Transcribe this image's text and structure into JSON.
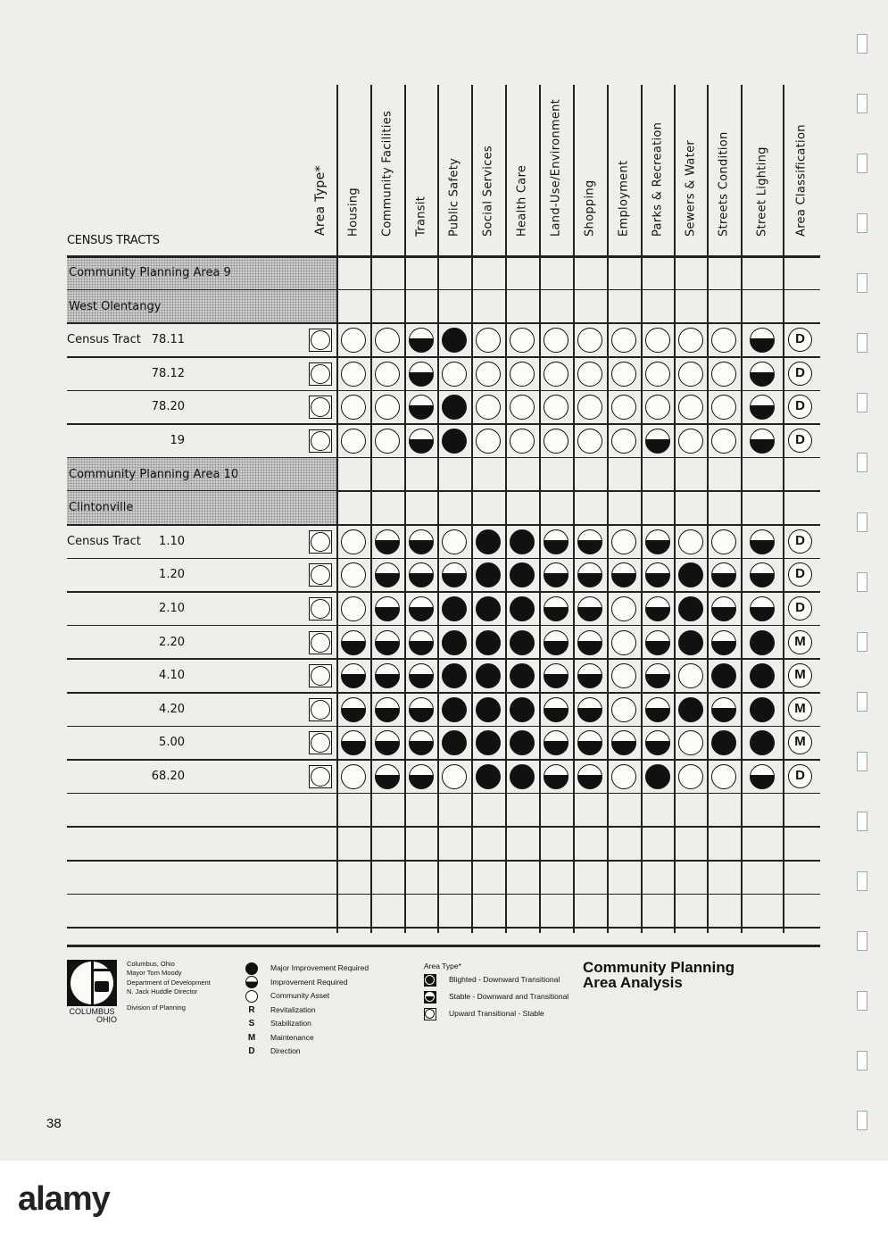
{
  "header": {
    "census_tracts_label": "CENSUS TRACTS",
    "area_type_label": "Area Type*",
    "columns": [
      "Housing",
      "Community Facilities",
      "Transit",
      "Public Safety",
      "Social Services",
      "Health Care",
      "Land-Use/Environment",
      "Shopping",
      "Employment",
      "Parks & Recreation",
      "Sewers & Water",
      "Streets Condition",
      "Street Lighting"
    ],
    "classification_label": "Area Classification"
  },
  "rows": [
    {
      "kind": "section",
      "label": "Community Planning Area 9"
    },
    {
      "kind": "section",
      "label": "West Olentangy"
    },
    {
      "kind": "tract",
      "prefix": "Census Tract",
      "tract": "78.11",
      "area_type": "upward-transitional-stable",
      "ratings": [
        "asset",
        "asset",
        "improvement",
        "major",
        "asset",
        "asset",
        "asset",
        "asset",
        "asset",
        "asset",
        "asset",
        "asset",
        "improvement"
      ],
      "classification": "D"
    },
    {
      "kind": "tract",
      "prefix": "",
      "tract": "78.12",
      "area_type": "upward-transitional-stable",
      "ratings": [
        "asset",
        "asset",
        "improvement",
        "asset",
        "asset",
        "asset",
        "asset",
        "asset",
        "asset",
        "asset",
        "asset",
        "asset",
        "improvement"
      ],
      "classification": "D"
    },
    {
      "kind": "tract",
      "prefix": "",
      "tract": "78.20",
      "area_type": "upward-transitional-stable",
      "ratings": [
        "asset",
        "asset",
        "improvement",
        "major",
        "asset",
        "asset",
        "asset",
        "asset",
        "asset",
        "asset",
        "asset",
        "asset",
        "improvement"
      ],
      "classification": "D"
    },
    {
      "kind": "tract",
      "prefix": "",
      "tract": "19",
      "area_type": "upward-transitional-stable",
      "ratings": [
        "asset",
        "asset",
        "improvement",
        "major",
        "asset",
        "asset",
        "asset",
        "asset",
        "asset",
        "improvement",
        "asset",
        "asset",
        "improvement"
      ],
      "classification": "D"
    },
    {
      "kind": "section",
      "label": "Community Planning Area 10"
    },
    {
      "kind": "section",
      "label": "Clintonville"
    },
    {
      "kind": "tract",
      "prefix": "Census Tract",
      "tract": "1.10",
      "area_type": "upward-transitional-stable",
      "ratings": [
        "asset",
        "improvement",
        "improvement",
        "asset",
        "major",
        "major",
        "improvement",
        "improvement",
        "asset",
        "improvement",
        "asset",
        "asset",
        "improvement"
      ],
      "classification": "D"
    },
    {
      "kind": "tract",
      "prefix": "",
      "tract": "1.20",
      "area_type": "upward-transitional-stable",
      "ratings": [
        "asset",
        "improvement",
        "improvement",
        "improvement",
        "major",
        "major",
        "improvement",
        "improvement",
        "improvement",
        "improvement",
        "major",
        "improvement",
        "improvement"
      ],
      "classification": "D"
    },
    {
      "kind": "tract",
      "prefix": "",
      "tract": "2.10",
      "area_type": "upward-transitional-stable",
      "ratings": [
        "asset",
        "improvement",
        "improvement",
        "major",
        "major",
        "major",
        "improvement",
        "improvement",
        "asset",
        "improvement",
        "major",
        "improvement",
        "improvement"
      ],
      "classification": "D"
    },
    {
      "kind": "tract",
      "prefix": "",
      "tract": "2.20",
      "area_type": "upward-transitional-stable",
      "ratings": [
        "improvement",
        "improvement",
        "improvement",
        "major",
        "major",
        "major",
        "improvement",
        "improvement",
        "asset",
        "improvement",
        "major",
        "improvement",
        "major"
      ],
      "classification": "M"
    },
    {
      "kind": "tract",
      "prefix": "",
      "tract": "4.10",
      "area_type": "upward-transitional-stable",
      "ratings": [
        "improvement",
        "improvement",
        "improvement",
        "major",
        "major",
        "major",
        "improvement",
        "improvement",
        "asset",
        "improvement",
        "asset",
        "major",
        "major"
      ],
      "classification": "M"
    },
    {
      "kind": "tract",
      "prefix": "",
      "tract": "4.20",
      "area_type": "upward-transitional-stable",
      "ratings": [
        "improvement",
        "improvement",
        "improvement",
        "major",
        "major",
        "major",
        "improvement",
        "improvement",
        "asset",
        "improvement",
        "major",
        "improvement",
        "major"
      ],
      "classification": "M"
    },
    {
      "kind": "tract",
      "prefix": "",
      "tract": "5.00",
      "area_type": "upward-transitional-stable",
      "ratings": [
        "improvement",
        "improvement",
        "improvement",
        "major",
        "major",
        "major",
        "improvement",
        "improvement",
        "improvement",
        "improvement",
        "asset",
        "major",
        "major"
      ],
      "classification": "M"
    },
    {
      "kind": "tract",
      "prefix": "",
      "tract": "68.20",
      "area_type": "upward-transitional-stable",
      "ratings": [
        "asset",
        "improvement",
        "improvement",
        "asset",
        "major",
        "major",
        "improvement",
        "improvement",
        "asset",
        "major",
        "asset",
        "asset",
        "improvement"
      ],
      "classification": "D"
    },
    {
      "kind": "empty"
    },
    {
      "kind": "empty"
    },
    {
      "kind": "empty"
    },
    {
      "kind": "empty"
    }
  ],
  "footer": {
    "logo_text": [
      "COLUMBUS",
      "OHIO"
    ],
    "credits": [
      "Columbus, Ohio",
      "Mayor Tom Moody",
      "Department of Development",
      "N. Jack Huddle Director",
      "Division of Planning"
    ],
    "legend_ratings": [
      {
        "symbol": "major",
        "label": "Major Improvement Required"
      },
      {
        "symbol": "improvement",
        "label": "Improvement Required"
      },
      {
        "symbol": "asset",
        "label": "Community Asset"
      }
    ],
    "legend_classes": [
      {
        "letter": "R",
        "label": "Revitalization"
      },
      {
        "letter": "S",
        "label": "Stabilization"
      },
      {
        "letter": "M",
        "label": "Maintenance"
      },
      {
        "letter": "D",
        "label": "Direction"
      }
    ],
    "area_type_title": "Area Type*",
    "area_types": [
      {
        "symbol": "major",
        "label": "Blighted - Downward Transitional"
      },
      {
        "symbol": "improvement",
        "label": "Stable - Downward and Transitional"
      },
      {
        "symbol": "asset",
        "label": "Upward Transitional - Stable"
      }
    ],
    "title": [
      "Community Planning",
      "Area Analysis"
    ]
  },
  "page_number": "38",
  "watermark": {
    "brand": "alamy"
  }
}
